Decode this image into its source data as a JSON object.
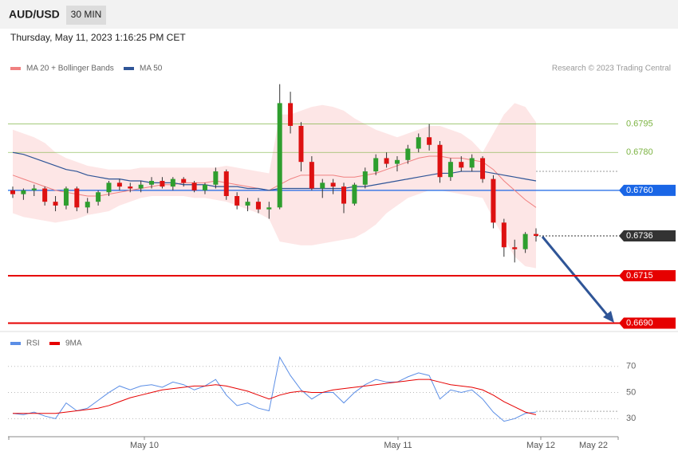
{
  "header": {
    "symbol": "AUD/USD",
    "timeframe": "30 MIN",
    "timestamp": "Thursday, May 11, 2023 1:16:25 PM CET"
  },
  "chart_data": [
    {
      "type": "candlestick",
      "copyright": "Research © 2023 Trading Central",
      "ylim": [
        0.6686,
        0.6836
      ],
      "up_color": "#2e9e2e",
      "down_color": "#dd1111",
      "candles": [
        [
          0.676,
          0.6762,
          0.6756,
          0.6758
        ],
        [
          0.6758,
          0.6761,
          0.6755,
          0.676
        ],
        [
          0.676,
          0.6763,
          0.6757,
          0.6761
        ],
        [
          0.6761,
          0.6762,
          0.6752,
          0.6754
        ],
        [
          0.6754,
          0.6757,
          0.6749,
          0.6752
        ],
        [
          0.6752,
          0.6762,
          0.675,
          0.6761
        ],
        [
          0.6761,
          0.6762,
          0.6749,
          0.6751
        ],
        [
          0.6751,
          0.6756,
          0.6748,
          0.6754
        ],
        [
          0.6754,
          0.676,
          0.6752,
          0.6759
        ],
        [
          0.6759,
          0.6765,
          0.6757,
          0.6764
        ],
        [
          0.6764,
          0.6766,
          0.676,
          0.6762
        ],
        [
          0.6762,
          0.6764,
          0.6759,
          0.6761
        ],
        [
          0.6761,
          0.6765,
          0.6759,
          0.6763
        ],
        [
          0.6763,
          0.6767,
          0.6761,
          0.6765
        ],
        [
          0.6765,
          0.6767,
          0.6761,
          0.6762
        ],
        [
          0.6762,
          0.6767,
          0.676,
          0.6766
        ],
        [
          0.6766,
          0.6767,
          0.6762,
          0.6764
        ],
        [
          0.6764,
          0.6765,
          0.6759,
          0.676
        ],
        [
          0.676,
          0.6764,
          0.6758,
          0.6763
        ],
        [
          0.6763,
          0.6772,
          0.6761,
          0.677
        ],
        [
          0.677,
          0.6771,
          0.6755,
          0.6757
        ],
        [
          0.6757,
          0.6759,
          0.675,
          0.6752
        ],
        [
          0.6752,
          0.6756,
          0.6749,
          0.6754
        ],
        [
          0.6754,
          0.6756,
          0.6748,
          0.675
        ],
        [
          0.675,
          0.6754,
          0.6745,
          0.6751
        ],
        [
          0.6751,
          0.6816,
          0.675,
          0.6806
        ],
        [
          0.6806,
          0.6812,
          0.679,
          0.6794
        ],
        [
          0.6794,
          0.6796,
          0.677,
          0.6775
        ],
        [
          0.6775,
          0.6778,
          0.676,
          0.6761
        ],
        [
          0.6761,
          0.6766,
          0.6756,
          0.6764
        ],
        [
          0.6764,
          0.6766,
          0.6758,
          0.6762
        ],
        [
          0.6762,
          0.6764,
          0.6748,
          0.6753
        ],
        [
          0.6753,
          0.6764,
          0.6752,
          0.6763
        ],
        [
          0.6763,
          0.6772,
          0.6761,
          0.677
        ],
        [
          0.677,
          0.6779,
          0.6768,
          0.6777
        ],
        [
          0.6777,
          0.678,
          0.6772,
          0.6774
        ],
        [
          0.6774,
          0.6778,
          0.677,
          0.6776
        ],
        [
          0.6776,
          0.6784,
          0.6774,
          0.6782
        ],
        [
          0.6782,
          0.679,
          0.678,
          0.6788
        ],
        [
          0.6788,
          0.6795,
          0.6781,
          0.6784
        ],
        [
          0.6784,
          0.6786,
          0.6764,
          0.6767
        ],
        [
          0.6767,
          0.6777,
          0.6765,
          0.6775
        ],
        [
          0.6775,
          0.6778,
          0.677,
          0.6772
        ],
        [
          0.6772,
          0.6779,
          0.677,
          0.6777
        ],
        [
          0.6777,
          0.6778,
          0.6764,
          0.6766
        ],
        [
          0.6766,
          0.6768,
          0.674,
          0.6743
        ],
        [
          0.6743,
          0.6745,
          0.6725,
          0.673
        ],
        [
          0.673,
          0.6734,
          0.6722,
          0.6729
        ],
        [
          0.6729,
          0.6738,
          0.6727,
          0.6737
        ],
        [
          0.6737,
          0.674,
          0.6733,
          0.6736
        ]
      ],
      "ma20": {
        "name": "MA 20 + Bollinger Bands",
        "color": "#f08080",
        "values": [
          0.6768,
          0.6766,
          0.6764,
          0.6762,
          0.676,
          0.6759,
          0.6758,
          0.6757,
          0.6757,
          0.6758,
          0.6759,
          0.676,
          0.6761,
          0.6762,
          0.6763,
          0.6763,
          0.6764,
          0.6764,
          0.6764,
          0.6765,
          0.6764,
          0.6763,
          0.6762,
          0.6761,
          0.676,
          0.6763,
          0.6766,
          0.6768,
          0.6768,
          0.6768,
          0.6768,
          0.6767,
          0.6767,
          0.6768,
          0.6769,
          0.6771,
          0.6773,
          0.6775,
          0.6777,
          0.6778,
          0.6778,
          0.6777,
          0.6777,
          0.6776,
          0.6775,
          0.6771,
          0.6765,
          0.676,
          0.6755,
          0.6751
        ],
        "upper": [
          0.6792,
          0.679,
          0.6788,
          0.6785,
          0.678,
          0.6777,
          0.6775,
          0.6773,
          0.6772,
          0.6771,
          0.6771,
          0.6771,
          0.6772,
          0.6772,
          0.6772,
          0.6772,
          0.6772,
          0.6772,
          0.6772,
          0.6772,
          0.6773,
          0.6772,
          0.6771,
          0.677,
          0.6769,
          0.68,
          0.68,
          0.6802,
          0.6804,
          0.6805,
          0.6804,
          0.6802,
          0.6798,
          0.6795,
          0.6792,
          0.679,
          0.6788,
          0.679,
          0.6792,
          0.6794,
          0.6794,
          0.6792,
          0.679,
          0.6786,
          0.678,
          0.679,
          0.68,
          0.6806,
          0.6804,
          0.6796
        ],
        "lower": [
          0.6748,
          0.6746,
          0.6745,
          0.6744,
          0.6743,
          0.6744,
          0.6745,
          0.6747,
          0.6748,
          0.6749,
          0.6752,
          0.6754,
          0.6756,
          0.6757,
          0.6757,
          0.6757,
          0.6757,
          0.6756,
          0.6756,
          0.6755,
          0.6754,
          0.6752,
          0.675,
          0.6748,
          0.6745,
          0.6733,
          0.6732,
          0.6731,
          0.6731,
          0.6732,
          0.6733,
          0.6734,
          0.6735,
          0.6738,
          0.6742,
          0.6748,
          0.6752,
          0.6756,
          0.6758,
          0.676,
          0.676,
          0.6759,
          0.6758,
          0.6757,
          0.6756,
          0.6745,
          0.6735,
          0.6725,
          0.672,
          0.6719
        ]
      },
      "ma50": {
        "name": "MA 50",
        "color": "#2f5597",
        "values": [
          0.678,
          0.6779,
          0.6777,
          0.6775,
          0.6773,
          0.6771,
          0.677,
          0.6768,
          0.6767,
          0.6766,
          0.6766,
          0.6765,
          0.6765,
          0.6764,
          0.6764,
          0.6764,
          0.6763,
          0.6763,
          0.6763,
          0.6762,
          0.6762,
          0.6762,
          0.6761,
          0.6761,
          0.676,
          0.6761,
          0.6761,
          0.6761,
          0.6761,
          0.6761,
          0.6761,
          0.6761,
          0.6762,
          0.6762,
          0.6763,
          0.6764,
          0.6765,
          0.6766,
          0.6767,
          0.6768,
          0.6769,
          0.6769,
          0.677,
          0.677,
          0.677,
          0.6769,
          0.6768,
          0.6767,
          0.6766,
          0.6765
        ]
      },
      "levels": [
        {
          "value": 0.6795,
          "color": "#7cb342",
          "style": "thin"
        },
        {
          "value": 0.678,
          "label": "0.6780",
          "color": "#7cb342",
          "style": "thin"
        },
        {
          "value": 0.676,
          "label": "0.6760",
          "color": "#1a66e6",
          "style": "box"
        },
        {
          "value": 0.6736,
          "color": "#333333",
          "style": "current"
        },
        {
          "value": 0.6715,
          "color": "#e60000",
          "style": "thick"
        },
        {
          "value": 0.669,
          "label": "0.6690",
          "color": "#e60000",
          "style": "thick"
        }
      ]
    },
    {
      "type": "line",
      "ylim": [
        18,
        79
      ],
      "yticks": [
        30,
        50,
        70
      ],
      "series": [
        {
          "name": "RSI",
          "color": "#5b8ee6",
          "values": [
            34,
            33,
            35,
            32,
            30,
            42,
            36,
            38,
            44,
            50,
            55,
            52,
            55,
            56,
            54,
            58,
            56,
            52,
            55,
            60,
            48,
            40,
            42,
            38,
            36,
            77,
            63,
            52,
            45,
            50,
            50,
            42,
            50,
            56,
            60,
            58,
            58,
            62,
            65,
            63,
            45,
            52,
            50,
            52,
            45,
            35,
            28,
            30,
            34,
            35
          ]
        },
        {
          "name": "9MA",
          "color": "#e60000",
          "values": [
            34,
            34,
            34,
            34,
            34,
            35,
            36,
            37,
            38,
            40,
            43,
            46,
            48,
            50,
            52,
            53,
            54,
            55,
            55,
            56,
            55,
            53,
            51,
            48,
            45,
            48,
            50,
            51,
            50,
            50,
            52,
            53,
            54,
            55,
            56,
            57,
            58,
            59,
            60,
            60,
            58,
            56,
            55,
            54,
            52,
            48,
            43,
            39,
            35,
            33
          ]
        }
      ]
    }
  ],
  "x_labels": [
    "May 10",
    "May 11",
    "May 12",
    "May 22"
  ]
}
